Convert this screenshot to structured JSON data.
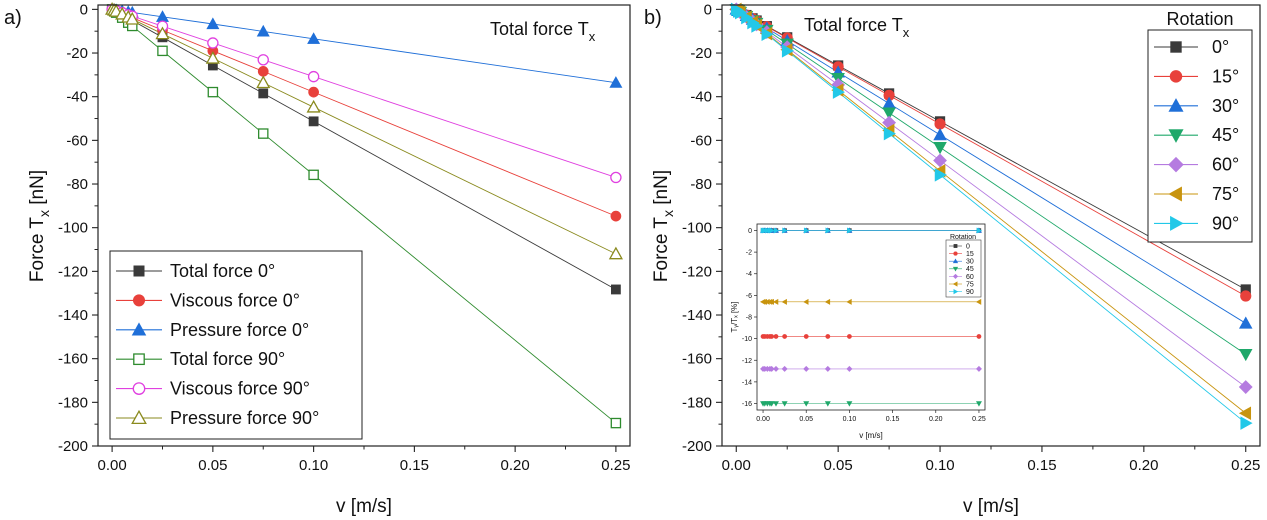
{
  "colors": {
    "black": "#3a3a3a",
    "red": "#e8413b",
    "blue": "#1f6fd8",
    "green": "#2e8b2e",
    "magenta": "#e040e0",
    "olive": "#8a8a1e",
    "teal": "#1fa86a",
    "violet": "#b57be0",
    "gold": "#c8940e",
    "cyan": "#22c8e8"
  },
  "chart_data": [
    {
      "type": "line",
      "panel_label": "a)",
      "title_main": "Total force T",
      "title_sub": "x",
      "xlabel": "v [m/s]",
      "ylabel_main": "Force T",
      "ylabel_sub": "x",
      "ylabel_unit": " [nN]",
      "xlim": [
        -0.007,
        0.257
      ],
      "ylim": [
        -200,
        2
      ],
      "x_ticks": [
        0.0,
        0.05,
        0.1,
        0.15,
        0.2,
        0.25
      ],
      "x_tick_labels": [
        "0.00",
        "0.05",
        "0.10",
        "0.15",
        "0.20",
        "0.25"
      ],
      "y_ticks": [
        0,
        -20,
        -40,
        -60,
        -80,
        -100,
        -120,
        -140,
        -160,
        -180,
        -200
      ],
      "y_tick_labels": [
        "0",
        "-20",
        "-40",
        "-60",
        "-80",
        "-100",
        "-120",
        "-140",
        "-160",
        "-180",
        "-200"
      ],
      "legend_position": "bottom-left",
      "x": [
        0.0,
        0.001,
        0.002,
        0.005,
        0.008,
        0.01,
        0.025,
        0.05,
        0.075,
        0.1,
        0.25
      ],
      "series": [
        {
          "name": "Total force 0°",
          "marker": "square",
          "filled": true,
          "color": "#3a3a3a",
          "values": [
            0,
            -0.5,
            -1,
            -2.6,
            -4.1,
            -5.1,
            -12.8,
            -25.7,
            -38.5,
            -51.3,
            -128.3
          ]
        },
        {
          "name": "Viscous force 0°",
          "marker": "circle",
          "filled": true,
          "color": "#e8413b",
          "values": [
            0,
            -0.4,
            -0.8,
            -1.9,
            -3,
            -3.8,
            -9.5,
            -19,
            -28.4,
            -37.9,
            -94.7
          ]
        },
        {
          "name": "Pressure force 0°",
          "marker": "triangle-up",
          "filled": true,
          "color": "#1f6fd8",
          "values": [
            0,
            -0.1,
            -0.3,
            -0.7,
            -1.1,
            -1.4,
            -3.4,
            -6.7,
            -10.1,
            -13.5,
            -33.6
          ]
        },
        {
          "name": "Total force 90°",
          "marker": "square",
          "filled": false,
          "color": "#2e8b2e",
          "values": [
            0,
            -0.8,
            -1.5,
            -3.8,
            -6.1,
            -7.6,
            -19,
            -37.9,
            -56.9,
            -75.8,
            -189.5
          ]
        },
        {
          "name": "Viscous force 90°",
          "marker": "circle",
          "filled": false,
          "color": "#e040e0",
          "values": [
            0,
            -0.3,
            -0.6,
            -1.5,
            -2.5,
            -3.1,
            -7.7,
            -15.4,
            -23.1,
            -30.8,
            -77
          ]
        },
        {
          "name": "Pressure force 90°",
          "marker": "triangle-up",
          "filled": false,
          "color": "#8a8a1e",
          "values": [
            0,
            -0.4,
            -0.9,
            -2.2,
            -3.6,
            -4.5,
            -11.2,
            -22.4,
            -33.6,
            -44.8,
            -112
          ]
        }
      ]
    },
    {
      "type": "line",
      "panel_label": "b)",
      "title_main": "Total force T",
      "title_sub": "x",
      "xlabel": "v [m/s]",
      "ylabel_main": "Force T",
      "ylabel_sub": "x",
      "ylabel_unit": " [nN]",
      "xlim": [
        -0.007,
        0.257
      ],
      "ylim": [
        -200,
        2
      ],
      "x_ticks": [
        0.0,
        0.05,
        0.1,
        0.15,
        0.2,
        0.25
      ],
      "x_tick_labels": [
        "0.00",
        "0.05",
        "0.10",
        "0.15",
        "0.20",
        "0.25"
      ],
      "y_ticks": [
        0,
        -20,
        -40,
        -60,
        -80,
        -100,
        -120,
        -140,
        -160,
        -180,
        -200
      ],
      "y_tick_labels": [
        "0",
        "-20",
        "-40",
        "-60",
        "-80",
        "-100",
        "-120",
        "-140",
        "-160",
        "-180",
        "-200"
      ],
      "legend_title": "Rotation",
      "legend_position": "top-right",
      "x": [
        0.0,
        0.001,
        0.002,
        0.005,
        0.008,
        0.01,
        0.015,
        0.025,
        0.05,
        0.075,
        0.1,
        0.25
      ],
      "series": [
        {
          "name": "0°",
          "marker": "square",
          "color": "#3a3a3a",
          "values": [
            0,
            -0.5,
            -1,
            -2.6,
            -4.1,
            -5.1,
            -7.7,
            -12.8,
            -25.7,
            -38.5,
            -51.3,
            -128.3
          ]
        },
        {
          "name": "15°",
          "marker": "circle",
          "color": "#e8413b",
          "values": [
            0,
            -0.5,
            -1.1,
            -2.6,
            -4.2,
            -5.2,
            -7.9,
            -13.1,
            -26.3,
            -39.4,
            -52.5,
            -131.3
          ]
        },
        {
          "name": "30°",
          "marker": "triangle-up",
          "color": "#1f6fd8",
          "values": [
            0,
            -0.6,
            -1.2,
            -2.9,
            -4.6,
            -5.8,
            -8.6,
            -14.4,
            -28.8,
            -43.1,
            -57.5,
            -143.8
          ]
        },
        {
          "name": "45°",
          "marker": "triangle-down",
          "color": "#1fa86a",
          "values": [
            0,
            -0.6,
            -1.3,
            -3.2,
            -5.1,
            -6.3,
            -9.5,
            -15.8,
            -31.6,
            -47.4,
            -63.2,
            -158
          ]
        },
        {
          "name": "60°",
          "marker": "diamond",
          "color": "#b57be0",
          "values": [
            0,
            -0.7,
            -1.4,
            -3.5,
            -5.5,
            -6.9,
            -10.4,
            -17.3,
            -34.6,
            -51.9,
            -69.2,
            -173
          ]
        },
        {
          "name": "75°",
          "marker": "triangle-left",
          "color": "#c8940e",
          "values": [
            0,
            -0.7,
            -1.5,
            -3.7,
            -5.9,
            -7.4,
            -11.1,
            -18.5,
            -37,
            -55.5,
            -74,
            -185
          ]
        },
        {
          "name": "90°",
          "marker": "triangle-right",
          "color": "#22c8e8",
          "values": [
            0,
            -0.8,
            -1.5,
            -3.8,
            -6.1,
            -7.6,
            -11.4,
            -19,
            -37.9,
            -56.9,
            -75.8,
            -189.5
          ]
        }
      ],
      "inset": {
        "xlabel": "v [m/s]",
        "ylabel": "Tᵧ/Tₓ [%]",
        "xlim": [
          -0.007,
          0.257
        ],
        "ylim": [
          -16.6,
          0.6
        ],
        "x_ticks": [
          0.0,
          0.05,
          0.1,
          0.15,
          0.2,
          0.25
        ],
        "x_tick_labels": [
          "0.00",
          "0.05",
          "0.10",
          "0.15",
          "0.20",
          "0.25"
        ],
        "y_ticks": [
          0,
          -2,
          -4,
          -6,
          -8,
          -10,
          -12,
          -14,
          -16
        ],
        "y_tick_labels": [
          "0",
          "-2",
          "-4",
          "-6",
          "-8",
          "-10",
          "-12",
          "-14",
          "-16"
        ],
        "legend_title": "Rotation",
        "legend_entries": [
          "0",
          "15",
          "30",
          "45",
          "60",
          "75",
          "90"
        ],
        "x": [
          0.0,
          0.002,
          0.005,
          0.008,
          0.01,
          0.015,
          0.025,
          0.05,
          0.075,
          0.1,
          0.25
        ],
        "series_values": [
          0,
          -9.8,
          0,
          -16,
          -12.8,
          -6.6,
          0
        ]
      }
    }
  ]
}
